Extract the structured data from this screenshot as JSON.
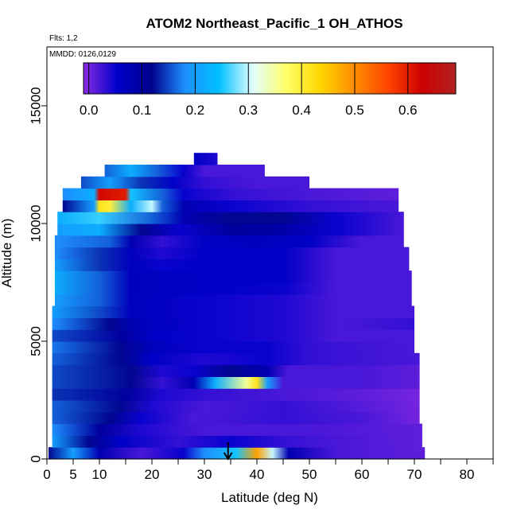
{
  "chart_data": {
    "type": "heatmap",
    "title": "ATOM2 Northeast_Pacific_1 OH_ATHOS",
    "subtitle_flights": "Flts: 1,2",
    "subtitle_dates": "MMDD: 0126,0129",
    "xlabel": "Latitude (deg N)",
    "ylabel": "Altitude (m)",
    "xlim": [
      0,
      85
    ],
    "ylim": [
      0,
      17500
    ],
    "x_ticks": [
      0,
      5,
      10,
      20,
      30,
      40,
      50,
      60,
      70,
      80
    ],
    "x_minor_ticks": [
      15,
      25,
      35,
      45,
      55,
      65,
      75,
      85
    ],
    "y_ticks": [
      0,
      5000,
      10000,
      15000
    ],
    "colorbar": {
      "ticks": [
        0.0,
        0.1,
        0.2,
        0.3,
        0.4,
        0.5,
        0.6
      ],
      "tick_labels": [
        "0.0",
        "0.1",
        "0.2",
        "0.3",
        "0.4",
        "0.5",
        "0.6"
      ],
      "range": [
        -0.01,
        0.69
      ],
      "colors": [
        "#8a2be2",
        "#0000cd",
        "#00008b",
        "#1e90ff",
        "#00bfff",
        "#e0ffff",
        "#ffff66",
        "#ffd700",
        "#ff8c00",
        "#ff4500",
        "#cc0000",
        "#b22222"
      ]
    },
    "arrow_marker": {
      "latitude": 34.5,
      "direction": "down"
    },
    "bands": [
      {
        "alt": [
          0,
          500
        ],
        "lat": [
          0.3,
          72
        ],
        "knots": [
          [
            0.3,
            0.12
          ],
          [
            5,
            0.2
          ],
          [
            10,
            0.08
          ],
          [
            18,
            0.02
          ],
          [
            26,
            0.05
          ],
          [
            30,
            0.18
          ],
          [
            36,
            0.25
          ],
          [
            40,
            0.48
          ],
          [
            43,
            0.3
          ],
          [
            46,
            0.08
          ],
          [
            55,
            0.02
          ],
          [
            72,
            0.01
          ]
        ]
      },
      {
        "alt": [
          500,
          1000
        ],
        "lat": [
          1,
          71.5
        ],
        "knots": [
          [
            1,
            0.2
          ],
          [
            8,
            0.12
          ],
          [
            14,
            0.06
          ],
          [
            25,
            0.03
          ],
          [
            35,
            0.05
          ],
          [
            45,
            0.03
          ],
          [
            55,
            0.02
          ],
          [
            71.5,
            0.01
          ]
        ]
      },
      {
        "alt": [
          1000,
          1500
        ],
        "lat": [
          1,
          71.5
        ],
        "knots": [
          [
            1,
            0.18
          ],
          [
            10,
            0.1
          ],
          [
            18,
            0.04
          ],
          [
            30,
            0.02
          ],
          [
            50,
            0.02
          ],
          [
            71.5,
            0.01
          ]
        ]
      },
      {
        "alt": [
          1500,
          2000
        ],
        "lat": [
          1,
          71
        ],
        "knots": [
          [
            1,
            0.16
          ],
          [
            12,
            0.12
          ],
          [
            18,
            0.05
          ],
          [
            28,
            0.02
          ],
          [
            45,
            0.03
          ],
          [
            60,
            0.02
          ],
          [
            71,
            0.0
          ]
        ]
      },
      {
        "alt": [
          2000,
          2500
        ],
        "lat": [
          1,
          71
        ],
        "knots": [
          [
            1,
            0.16
          ],
          [
            14,
            0.12
          ],
          [
            20,
            0.04
          ],
          [
            30,
            0.02
          ],
          [
            45,
            0.03
          ],
          [
            55,
            0.02
          ],
          [
            71,
            0.0
          ]
        ]
      },
      {
        "alt": [
          2500,
          3000
        ],
        "lat": [
          1,
          71
        ],
        "knots": [
          [
            1,
            0.14
          ],
          [
            15,
            0.1
          ],
          [
            22,
            0.04
          ],
          [
            30,
            0.03
          ],
          [
            45,
            0.02
          ],
          [
            60,
            0.01
          ],
          [
            71,
            0.0
          ]
        ]
      },
      {
        "alt": [
          3000,
          3500
        ],
        "lat": [
          1,
          71
        ],
        "knots": [
          [
            1,
            0.15
          ],
          [
            16,
            0.12
          ],
          [
            22,
            0.03
          ],
          [
            28,
            0.08
          ],
          [
            32,
            0.22
          ],
          [
            38,
            0.35
          ],
          [
            40,
            0.42
          ],
          [
            42,
            0.2
          ],
          [
            45,
            0.02
          ],
          [
            60,
            0.02
          ],
          [
            71,
            0.01
          ]
        ]
      },
      {
        "alt": [
          3500,
          4000
        ],
        "lat": [
          1,
          71
        ],
        "knots": [
          [
            1,
            0.15
          ],
          [
            16,
            0.12
          ],
          [
            22,
            0.04
          ],
          [
            28,
            0.05
          ],
          [
            35,
            0.12
          ],
          [
            42,
            0.08
          ],
          [
            46,
            0.02
          ],
          [
            60,
            0.02
          ],
          [
            71,
            0.01
          ]
        ]
      },
      {
        "alt": [
          4000,
          4500
        ],
        "lat": [
          1,
          71
        ],
        "knots": [
          [
            1,
            0.16
          ],
          [
            14,
            0.12
          ],
          [
            20,
            0.06
          ],
          [
            30,
            0.04
          ],
          [
            42,
            0.05
          ],
          [
            50,
            0.03
          ],
          [
            71,
            0.02
          ]
        ]
      },
      {
        "alt": [
          4500,
          5000
        ],
        "lat": [
          1,
          70
        ],
        "knots": [
          [
            1,
            0.17
          ],
          [
            14,
            0.12
          ],
          [
            20,
            0.07
          ],
          [
            30,
            0.05
          ],
          [
            42,
            0.05
          ],
          [
            50,
            0.03
          ],
          [
            70,
            0.02
          ]
        ]
      },
      {
        "alt": [
          5000,
          5500
        ],
        "lat": [
          1,
          70
        ],
        "knots": [
          [
            1,
            0.15
          ],
          [
            14,
            0.1
          ],
          [
            20,
            0.06
          ],
          [
            30,
            0.05
          ],
          [
            45,
            0.04
          ],
          [
            55,
            0.02
          ],
          [
            70,
            0.02
          ]
        ]
      },
      {
        "alt": [
          5500,
          6000
        ],
        "lat": [
          1,
          70
        ],
        "knots": [
          [
            1,
            0.18
          ],
          [
            12,
            0.12
          ],
          [
            18,
            0.07
          ],
          [
            30,
            0.05
          ],
          [
            45,
            0.04
          ],
          [
            55,
            0.02
          ],
          [
            70,
            0.03
          ]
        ]
      },
      {
        "alt": [
          6000,
          6500
        ],
        "lat": [
          1,
          70
        ],
        "knots": [
          [
            1,
            0.2
          ],
          [
            10,
            0.15
          ],
          [
            16,
            0.07
          ],
          [
            30,
            0.05
          ],
          [
            45,
            0.04
          ],
          [
            55,
            0.02
          ],
          [
            70,
            0.02
          ]
        ]
      },
      {
        "alt": [
          6500,
          7000
        ],
        "lat": [
          1.5,
          69.5
        ],
        "knots": [
          [
            1.5,
            0.2
          ],
          [
            10,
            0.16
          ],
          [
            16,
            0.07
          ],
          [
            30,
            0.05
          ],
          [
            45,
            0.04
          ],
          [
            55,
            0.02
          ],
          [
            69.5,
            0.02
          ]
        ]
      },
      {
        "alt": [
          7000,
          7500
        ],
        "lat": [
          1.5,
          69.5
        ],
        "knots": [
          [
            1.5,
            0.22
          ],
          [
            10,
            0.16
          ],
          [
            16,
            0.07
          ],
          [
            30,
            0.06
          ],
          [
            45,
            0.05
          ],
          [
            55,
            0.02
          ],
          [
            69.5,
            0.02
          ]
        ]
      },
      {
        "alt": [
          7500,
          8000
        ],
        "lat": [
          1.5,
          69.5
        ],
        "knots": [
          [
            1.5,
            0.22
          ],
          [
            10,
            0.16
          ],
          [
            16,
            0.07
          ],
          [
            30,
            0.06
          ],
          [
            45,
            0.06
          ],
          [
            55,
            0.02
          ],
          [
            69.5,
            0.02
          ]
        ]
      },
      {
        "alt": [
          8000,
          8500
        ],
        "lat": [
          1.5,
          69
        ],
        "knots": [
          [
            1.5,
            0.2
          ],
          [
            10,
            0.14
          ],
          [
            16,
            0.07
          ],
          [
            22,
            0.05
          ],
          [
            30,
            0.06
          ],
          [
            45,
            0.06
          ],
          [
            55,
            0.02
          ],
          [
            69,
            0.02
          ]
        ]
      },
      {
        "alt": [
          8500,
          9000
        ],
        "lat": [
          1.5,
          69
        ],
        "knots": [
          [
            1.5,
            0.18
          ],
          [
            10,
            0.14
          ],
          [
            16,
            0.07
          ],
          [
            22,
            0.04
          ],
          [
            30,
            0.06
          ],
          [
            45,
            0.06
          ],
          [
            55,
            0.02
          ],
          [
            69,
            0.02
          ]
        ]
      },
      {
        "alt": [
          9000,
          9500
        ],
        "lat": [
          1.5,
          68
        ],
        "knots": [
          [
            1.5,
            0.18
          ],
          [
            12,
            0.16
          ],
          [
            16,
            0.08
          ],
          [
            22,
            0.03
          ],
          [
            30,
            0.06
          ],
          [
            40,
            0.07
          ],
          [
            50,
            0.06
          ],
          [
            60,
            0.02
          ],
          [
            68,
            0.02
          ]
        ]
      },
      {
        "alt": [
          9500,
          10000
        ],
        "lat": [
          2,
          68
        ],
        "knots": [
          [
            2,
            0.2
          ],
          [
            10,
            0.22
          ],
          [
            18,
            0.12
          ],
          [
            25,
            0.05
          ],
          [
            35,
            0.1
          ],
          [
            45,
            0.09
          ],
          [
            55,
            0.05
          ],
          [
            68,
            0.02
          ]
        ]
      },
      {
        "alt": [
          10000,
          10500
        ],
        "lat": [
          2,
          68
        ],
        "knots": [
          [
            2,
            0.22
          ],
          [
            10,
            0.26
          ],
          [
            20,
            0.16
          ],
          [
            26,
            0.08
          ],
          [
            35,
            0.12
          ],
          [
            45,
            0.12
          ],
          [
            55,
            0.05
          ],
          [
            68,
            0.02
          ]
        ]
      },
      {
        "alt": [
          10500,
          11000
        ],
        "lat": [
          3,
          67
        ],
        "knots": [
          [
            3,
            0.12
          ],
          [
            9,
            0.2
          ],
          [
            10,
            0.42
          ],
          [
            12,
            0.4
          ],
          [
            16,
            0.22
          ],
          [
            20,
            0.3
          ],
          [
            22,
            0.16
          ],
          [
            26,
            0.08
          ],
          [
            35,
            0.05
          ],
          [
            50,
            0.03
          ],
          [
            67,
            0.02
          ]
        ]
      },
      {
        "alt": [
          11000,
          11500
        ],
        "lat": [
          3,
          67
        ],
        "knots": [
          [
            3,
            0.18
          ],
          [
            9,
            0.22
          ],
          [
            10,
            0.62
          ],
          [
            15,
            0.6
          ],
          [
            16,
            0.25
          ],
          [
            22,
            0.16
          ],
          [
            26,
            0.05
          ],
          [
            35,
            0.03
          ],
          [
            50,
            0.02
          ],
          [
            67,
            0.01
          ]
        ]
      },
      {
        "alt": [
          11500,
          12000
        ],
        "lat": [
          6.5,
          50
        ],
        "knots": [
          [
            6.5,
            0.15
          ],
          [
            12,
            0.2
          ],
          [
            18,
            0.14
          ],
          [
            24,
            0.06
          ],
          [
            30,
            0.03
          ],
          [
            40,
            0.02
          ],
          [
            50,
            0.02
          ]
        ]
      },
      {
        "alt": [
          12000,
          12500
        ],
        "lat": [
          11,
          41.5
        ],
        "knots": [
          [
            11,
            0.16
          ],
          [
            16,
            0.22
          ],
          [
            21,
            0.16
          ],
          [
            26,
            0.05
          ],
          [
            30,
            0.02
          ],
          [
            41.5,
            0.02
          ]
        ]
      },
      {
        "alt": [
          12500,
          13000
        ],
        "lat": [
          28,
          32.5
        ],
        "knots": [
          [
            28,
            0.06
          ],
          [
            32.5,
            0.04
          ]
        ]
      }
    ]
  }
}
